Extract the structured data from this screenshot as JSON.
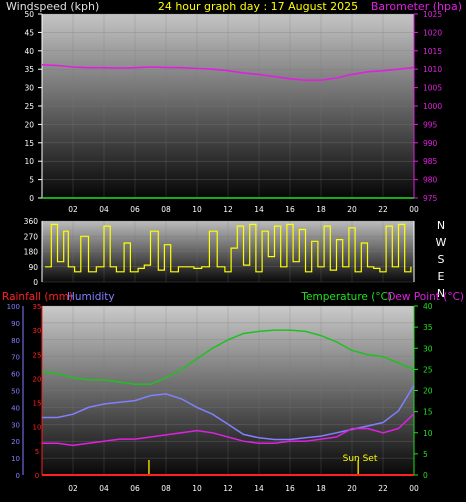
{
  "chart_data": [
    {
      "type": "line",
      "title": "24 hour graph day : 17 August 2025",
      "ylabel_left": "Windspeed (kph)",
      "ylabel_right": "Barometer (hpa)",
      "ylim_left": [
        0,
        50
      ],
      "ylim_right": [
        975,
        1025
      ],
      "left_ticks": [
        "0",
        "5",
        "10",
        "15",
        "20",
        "25",
        "30",
        "35",
        "40",
        "45",
        "50"
      ],
      "right_ticks": [
        "975",
        "980",
        "985",
        "990",
        "995",
        "1000",
        "1005",
        "1010",
        "1015",
        "1020",
        "1025"
      ],
      "x_ticks": [
        "02",
        "04",
        "06",
        "08",
        "10",
        "12",
        "14",
        "16",
        "18",
        "20",
        "22",
        "00"
      ],
      "series": [
        {
          "name": "Barometer (hpa)",
          "axis": "right",
          "color": "#e020e0",
          "x": [
            0,
            1,
            2,
            3,
            4,
            5,
            6,
            7,
            8,
            9,
            10,
            11,
            12,
            13,
            14,
            15,
            16,
            17,
            18,
            19,
            20,
            21,
            22,
            23,
            24
          ],
          "values": [
            1011.2,
            1011.0,
            1010.6,
            1010.4,
            1010.4,
            1010.3,
            1010.4,
            1010.6,
            1010.5,
            1010.4,
            1010.2,
            1010.0,
            1009.6,
            1009.0,
            1008.6,
            1008.0,
            1007.4,
            1007.0,
            1007.0,
            1007.6,
            1008.6,
            1009.3,
            1009.6,
            1010.0,
            1010.5
          ]
        }
      ]
    },
    {
      "type": "line",
      "title": "",
      "ylim": [
        0,
        360
      ],
      "y_ticks": [
        "0",
        "90",
        "180",
        "270",
        "360"
      ],
      "compass": [
        "N",
        "W",
        "S",
        "E",
        "N"
      ],
      "series": [
        {
          "name": "",
          "color": "#ffff00",
          "x": [
            0.2,
            0.6,
            1.0,
            1.4,
            1.7,
            2.1,
            2.5,
            3.0,
            3.5,
            4.0,
            4.4,
            4.8,
            5.3,
            5.7,
            6.2,
            6.6,
            7.0,
            7.5,
            7.9,
            8.3,
            8.8,
            9.3,
            9.8,
            10.3,
            10.8,
            11.3,
            11.8,
            12.2,
            12.6,
            13.0,
            13.4,
            13.8,
            14.2,
            14.6,
            15.0,
            15.4,
            15.8,
            16.2,
            16.6,
            17.0,
            17.4,
            17.8,
            18.2,
            18.6,
            19.0,
            19.4,
            19.8,
            20.2,
            20.6,
            21.0,
            21.4,
            21.8,
            22.2,
            22.6,
            23.0,
            23.4,
            23.8
          ],
          "values": [
            90,
            340,
            120,
            300,
            90,
            60,
            270,
            60,
            90,
            330,
            90,
            60,
            230,
            60,
            80,
            100,
            300,
            70,
            220,
            60,
            90,
            90,
            80,
            90,
            300,
            90,
            60,
            200,
            330,
            100,
            340,
            60,
            300,
            150,
            330,
            90,
            340,
            120,
            310,
            60,
            240,
            90,
            330,
            70,
            250,
            90,
            320,
            60,
            230,
            90,
            80,
            60,
            330,
            90,
            340,
            60,
            90
          ]
        }
      ]
    },
    {
      "type": "line",
      "ylabel_left_1": "Rainfall (mm)",
      "ylabel_left_2": "Humidity",
      "ylabel_right_1": "Temperature (°C)",
      "ylabel_right_2": "Dew Point (°C)",
      "ylim_humidity": [
        0,
        100
      ],
      "ylim_rain": [
        0,
        35
      ],
      "ylim_temp": [
        0,
        40
      ],
      "humidity_ticks": [
        "0",
        "10",
        "20",
        "30",
        "40",
        "50",
        "60",
        "70",
        "80",
        "90",
        "100"
      ],
      "rain_ticks": [
        "0",
        "5",
        "10",
        "15",
        "20",
        "25",
        "30",
        "35"
      ],
      "temp_ticks": [
        "0",
        "5",
        "10",
        "15",
        "20",
        "25",
        "30",
        "35",
        "40"
      ],
      "x_ticks": [
        "02",
        "04",
        "06",
        "08",
        "10",
        "12",
        "14",
        "16",
        "18",
        "20",
        "22",
        "00"
      ],
      "annotation": "Sun Set",
      "sun_markers_x": [
        6.9,
        20.4
      ],
      "series": [
        {
          "name": "Temperature (°C)",
          "axis": "temp",
          "color": "#20c020",
          "x": [
            0,
            1,
            2,
            3,
            4,
            5,
            6,
            7,
            8,
            9,
            10,
            11,
            12,
            13,
            14,
            15,
            16,
            17,
            18,
            19,
            20,
            21,
            22,
            23,
            24
          ],
          "values": [
            24.5,
            24.0,
            23.0,
            22.5,
            22.5,
            22.0,
            21.5,
            21.5,
            23.0,
            25.0,
            27.5,
            30.0,
            32.0,
            33.5,
            34.0,
            34.3,
            34.3,
            34.0,
            33.0,
            31.5,
            29.5,
            28.5,
            28.0,
            26.5,
            25.0
          ]
        },
        {
          "name": "Humidity",
          "axis": "humidity",
          "color": "#8080ff",
          "x": [
            0,
            1,
            2,
            3,
            4,
            5,
            6,
            7,
            8,
            9,
            10,
            11,
            12,
            13,
            14,
            15,
            16,
            17,
            18,
            19,
            20,
            21,
            22,
            23,
            24
          ],
          "values": [
            34,
            34,
            36,
            40,
            42,
            43,
            44,
            47,
            48,
            45,
            40,
            36,
            30,
            24,
            22,
            21,
            21,
            22,
            23,
            25,
            27,
            29,
            31,
            38,
            53
          ]
        },
        {
          "name": "Dew Point (°C)",
          "axis": "temp",
          "color": "#e020e0",
          "x": [
            0,
            1,
            2,
            3,
            4,
            5,
            6,
            7,
            8,
            9,
            10,
            11,
            12,
            13,
            14,
            15,
            16,
            17,
            18,
            19,
            20,
            21,
            22,
            23,
            24
          ],
          "values": [
            7.5,
            7.5,
            7.0,
            7.5,
            8.0,
            8.5,
            8.5,
            9.0,
            9.5,
            10.0,
            10.5,
            10.0,
            9.0,
            8.0,
            7.5,
            7.5,
            8.0,
            8.0,
            8.5,
            9.0,
            11.0,
            11.0,
            10.0,
            11.0,
            14.5
          ]
        },
        {
          "name": "Rainfall (mm)",
          "axis": "rain",
          "color": "#ff2020",
          "x": [
            0,
            24
          ],
          "values": [
            0,
            0
          ]
        }
      ]
    }
  ]
}
